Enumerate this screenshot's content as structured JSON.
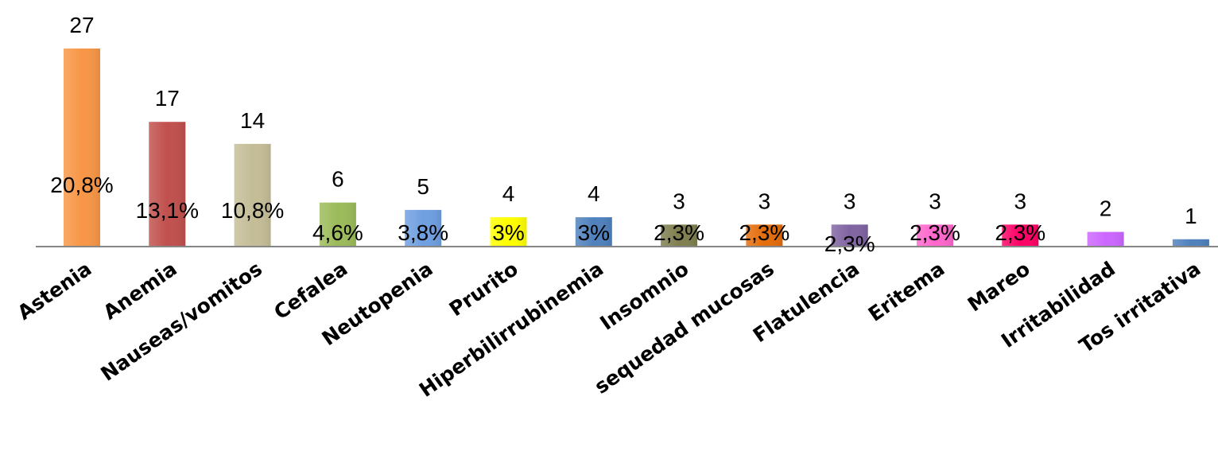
{
  "chart_data": {
    "type": "bar",
    "title": "",
    "xlabel": "",
    "ylabel": "",
    "ylim": [
      0,
      27
    ],
    "grid": false,
    "legend": "none",
    "categories": [
      "Astenia",
      "Anemia",
      "Nauseas/vomitos",
      "Cefalea",
      "Neutopenia",
      "Prurito",
      "Hiperbilirrubinemia",
      "Insomnio",
      "sequedad mucosas",
      "Flatulencia",
      "Eritema",
      "Mareo",
      "Irritabilidad",
      "Tos irritativa"
    ],
    "values": [
      27,
      17,
      14,
      6,
      5,
      4,
      4,
      3,
      3,
      3,
      3,
      3,
      2,
      1
    ],
    "value_labels": [
      "27",
      "17",
      "14",
      "6",
      "5",
      "4",
      "4",
      "3",
      "3",
      "3",
      "3",
      "3",
      "2",
      "1"
    ],
    "percent_labels": [
      "20,8%",
      "13,1%",
      "10,8%",
      "4,6%",
      "3,8%",
      "3%",
      "3%",
      "2,3%",
      "2,3%",
      "2,3%",
      "2,3%",
      "2,3%",
      "",
      ""
    ],
    "colors": [
      "#f79646",
      "#c0504d",
      "#c4bd97",
      "#9bbb59",
      "#6f9fe0",
      "#ffff00",
      "#4f81bd",
      "#7f7f4f",
      "#e46c0a",
      "#8064a2",
      "#ff66cc",
      "#ff0066",
      "#cc66ff",
      "#4f81bd"
    ]
  }
}
